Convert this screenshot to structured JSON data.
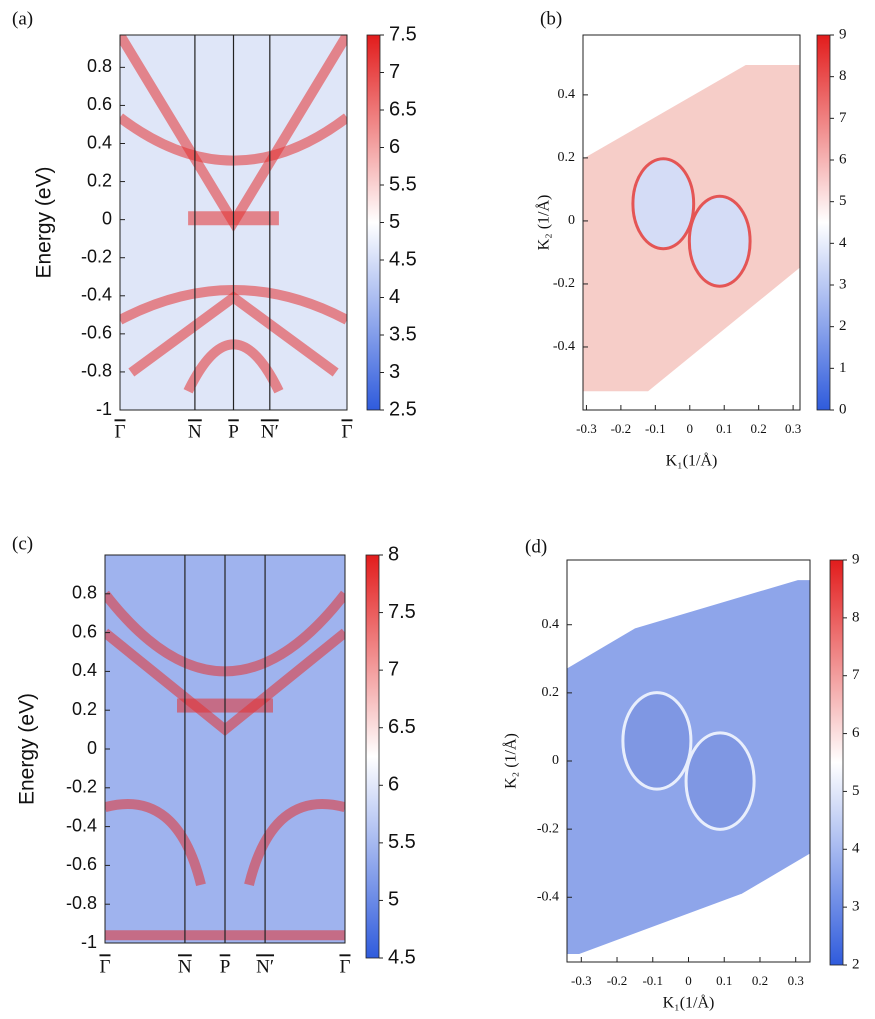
{
  "chart_data": [
    {
      "type": "heatmap",
      "panel_label": "(a)",
      "ylabel": "Energy (eV)",
      "categories": [
        "Γ",
        "N",
        "P",
        "N′",
        "Γ"
      ],
      "ylim": [
        -1,
        0.97
      ],
      "yticks": [
        0.8,
        0.6,
        0.4,
        0.2,
        0,
        -0.2,
        -0.4,
        -0.6,
        -0.8,
        -1
      ],
      "zlim": [
        2.5,
        7.5
      ],
      "zticks": [
        7.5,
        7,
        6.5,
        6,
        5.5,
        5,
        4.5,
        4,
        3.5,
        3,
        2.5
      ],
      "colormap": [
        "#2f5bdc",
        "#ffffff",
        "#e21c1c"
      ]
    },
    {
      "type": "heatmap",
      "panel_label": "(b)",
      "xlabel": "K₁(1/Å)",
      "ylabel": "K₂ (1/Å)",
      "xlim": [
        -0.31,
        0.32
      ],
      "xticks": [
        -0.3,
        -0.2,
        -0.1,
        0,
        0.1,
        0.2,
        0.3
      ],
      "ylim": [
        -0.6,
        0.59
      ],
      "yticks": [
        0.4,
        0.2,
        0,
        -0.2,
        -0.4
      ],
      "zlim": [
        0,
        9
      ],
      "zticks": [
        9,
        8,
        7,
        6,
        5,
        4,
        3,
        2,
        1,
        0
      ],
      "colormap": [
        "#2f5bdc",
        "#ffffff",
        "#e21c1c"
      ]
    },
    {
      "type": "heatmap",
      "panel_label": "(c)",
      "ylabel": "Energy (eV)",
      "categories": [
        "Γ",
        "N",
        "P",
        "N′",
        "Γ"
      ],
      "ylim": [
        -1,
        1
      ],
      "yticks": [
        0.8,
        0.6,
        0.4,
        0.2,
        0,
        -0.2,
        -0.4,
        -0.6,
        -0.8,
        -1
      ],
      "zlim": [
        4.5,
        8
      ],
      "zticks": [
        8,
        7.5,
        7,
        6.5,
        6,
        5.5,
        5,
        4.5
      ],
      "colormap": [
        "#2f5bdc",
        "#ffffff",
        "#e21c1c"
      ]
    },
    {
      "type": "heatmap",
      "panel_label": "(d)",
      "xlabel": "K₁(1/Å)",
      "ylabel": "K₂ (1/Å)",
      "xlim": [
        -0.34,
        0.34
      ],
      "xticks": [
        -0.3,
        -0.2,
        -0.1,
        0,
        0.1,
        0.2,
        0.3
      ],
      "ylim": [
        -0.59,
        0.59
      ],
      "yticks": [
        0.4,
        0.2,
        0,
        -0.2,
        -0.4
      ],
      "zlim": [
        2,
        9
      ],
      "zticks": [
        9,
        8,
        7,
        6,
        5,
        4,
        3,
        2
      ],
      "colormap": [
        "#2f5bdc",
        "#ffffff",
        "#e21c1c"
      ]
    }
  ]
}
